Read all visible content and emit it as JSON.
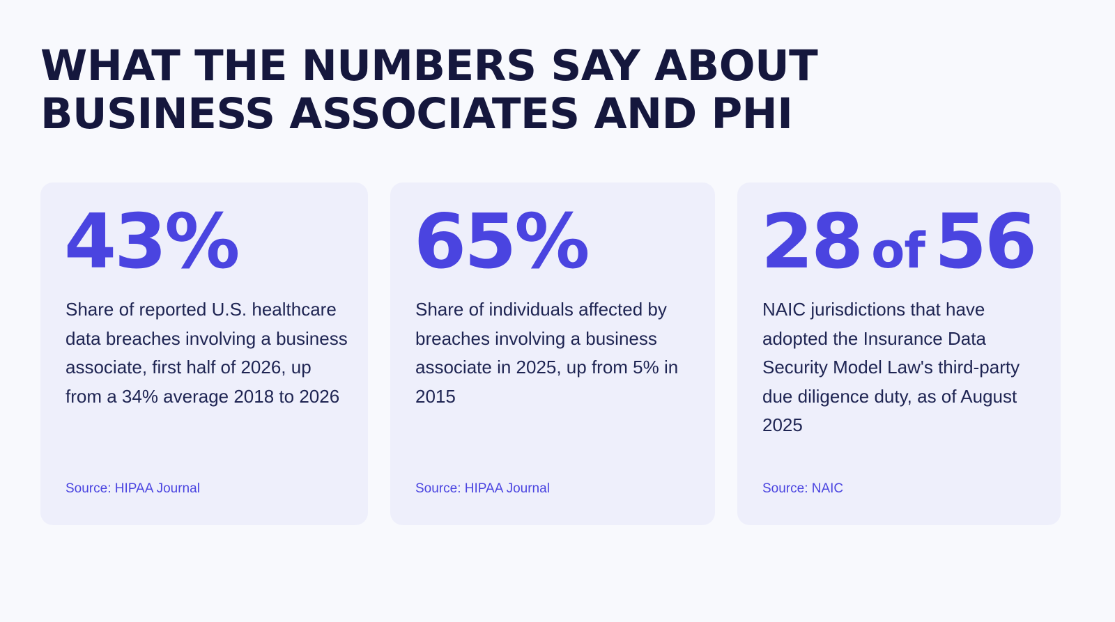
{
  "headline": {
    "line1": "WHAT THE NUMBERS SAY ABOUT",
    "line2": "BUSINESS ASSOCIATES AND PHI"
  },
  "stats": [
    {
      "value": "43%",
      "description": "Share of reported U.S. healthcare data breaches involving a business associate, first half of 2026, up from a 34% average 2018 to 2026",
      "source": "Source: HIPAA Journal"
    },
    {
      "value": "65%",
      "description": "Share of individuals affected by breaches involving a business associate in 2025, up from 5% in 2015",
      "source": "Source: HIPAA Journal"
    },
    {
      "value_part1": "28",
      "value_connector": "of",
      "value_part2": "56",
      "description": "NAIC jurisdictions that have adopted the Insurance Data Security Model Law's third-party due diligence duty, as of August 2025",
      "source": "Source: NAIC"
    }
  ],
  "colors": {
    "background": "#f8f9fd",
    "card": "#eeeffb",
    "accent": "#4a44e0",
    "headline": "#15173d",
    "body_text": "#1e2452"
  }
}
